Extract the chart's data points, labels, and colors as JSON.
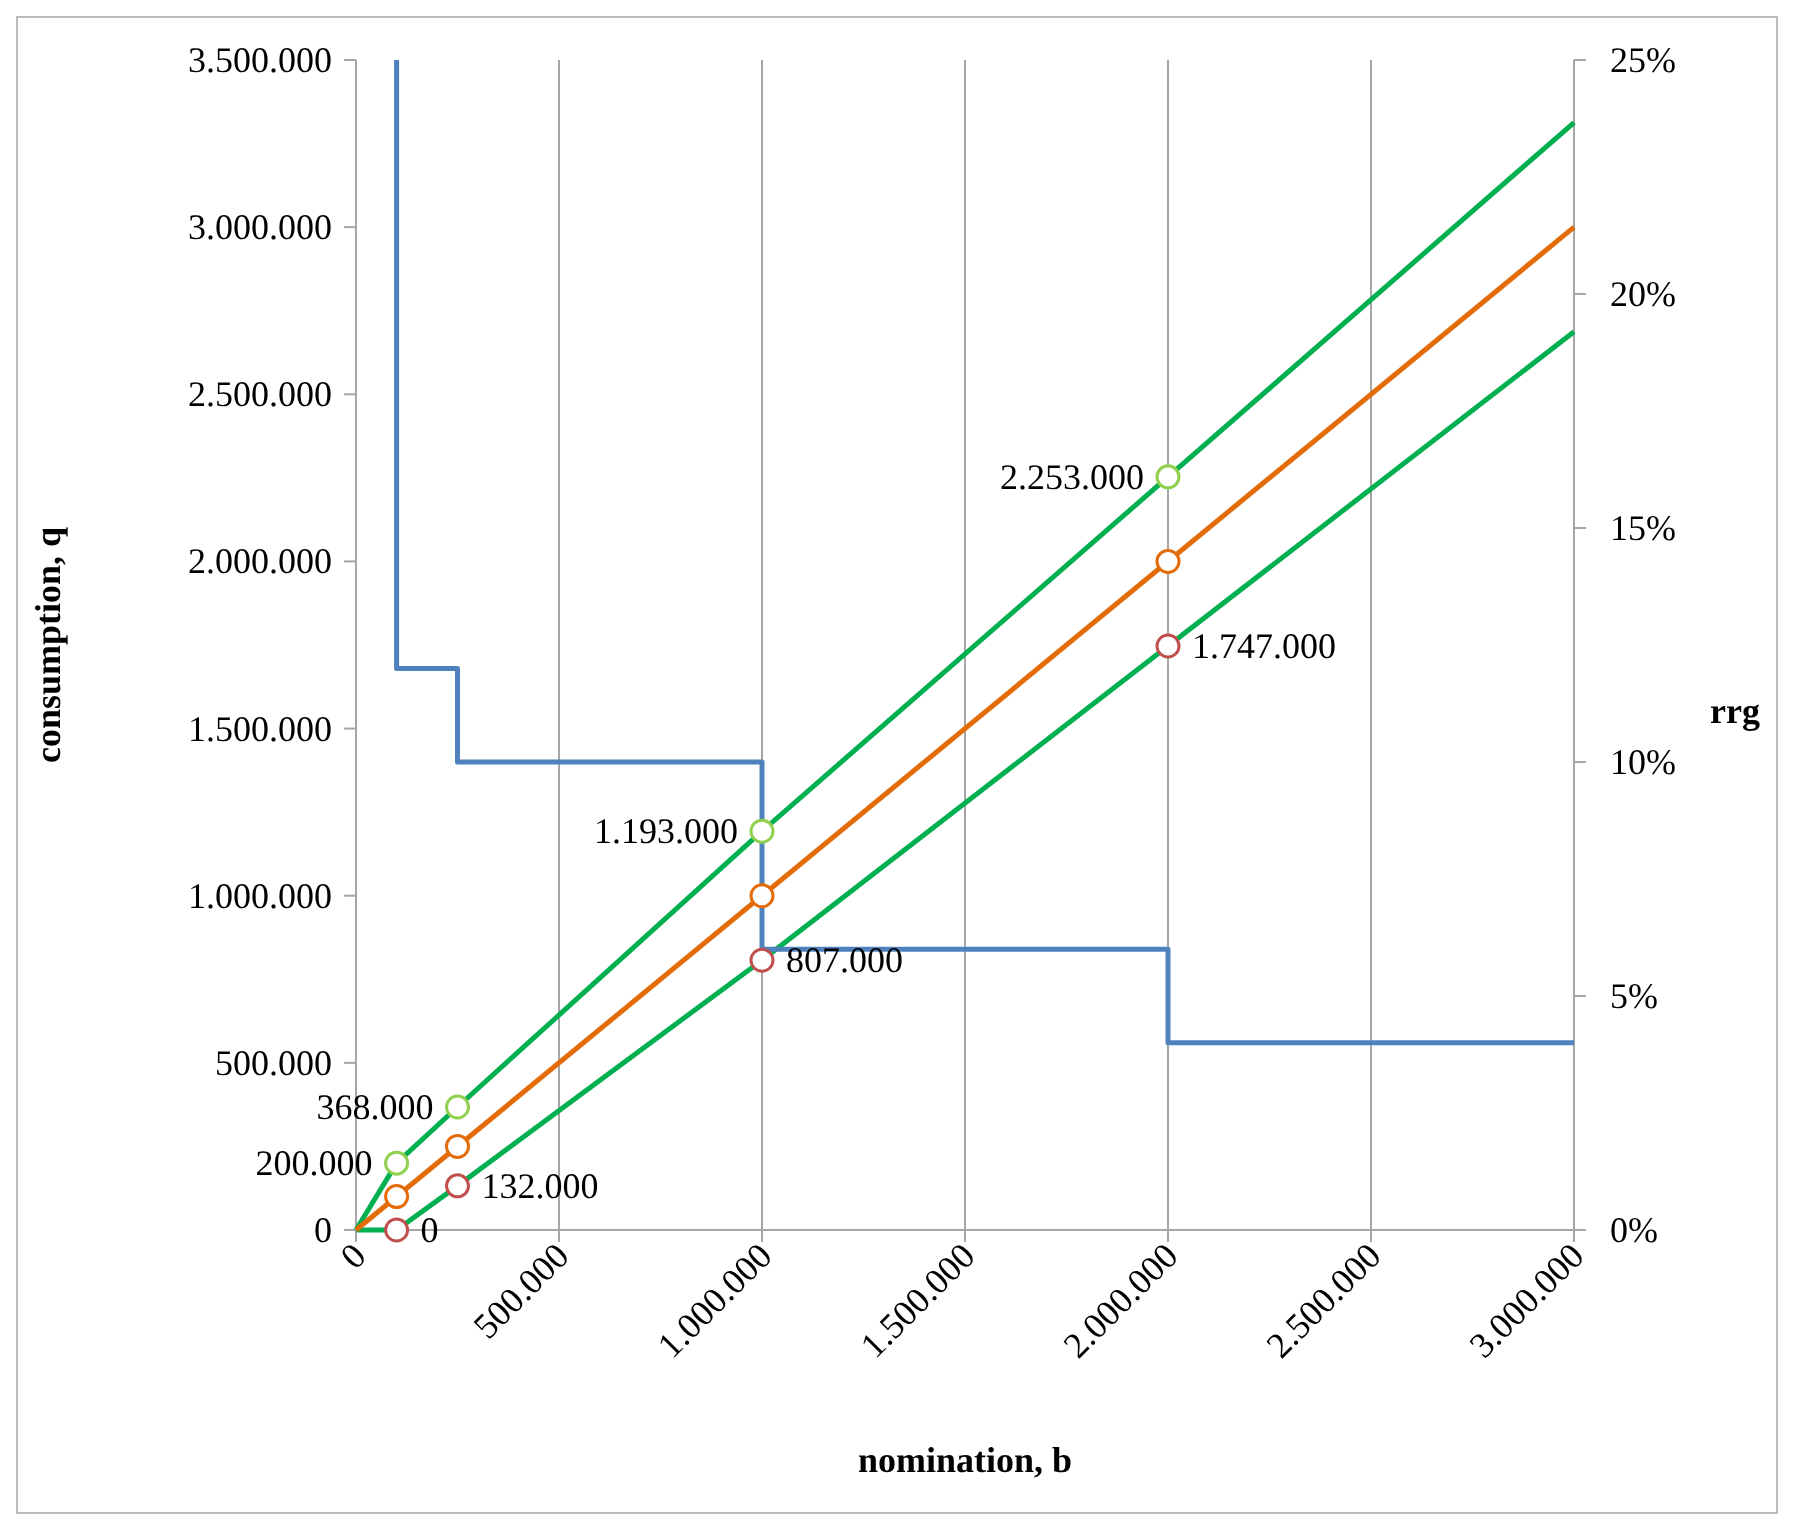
{
  "chart_data": {
    "type": "line",
    "xlabel": "nomination, b",
    "ylabel": "consumption, q",
    "y2label": "rrg",
    "xlim": [
      0,
      3000000
    ],
    "xticks": [
      0,
      {
        "value": 500000,
        "label": "500.000"
      },
      {
        "value": 1000000,
        "label": "1.000.000"
      },
      {
        "value": 1500000,
        "label": "1.500.000"
      },
      {
        "value": 2000000,
        "label": "2.000.000"
      },
      {
        "value": 2500000,
        "label": "2.500.000"
      },
      {
        "value": 3000000,
        "label": "3.000.000"
      }
    ],
    "ylim": [
      0,
      3500000
    ],
    "yticks": [
      0,
      {
        "value": 500000,
        "label": "500.000"
      },
      {
        "value": 1000000,
        "label": "1.000.000"
      },
      {
        "value": 1500000,
        "label": "1.500.000"
      },
      {
        "value": 2000000,
        "label": "2.000.000"
      },
      {
        "value": 2500000,
        "label": "2.500.000"
      },
      {
        "value": 3000000,
        "label": "3.000.000"
      },
      {
        "value": 3500000,
        "label": "3.500.000"
      }
    ],
    "y2lim": [
      0,
      25
    ],
    "y2ticks": [
      {
        "value": 0,
        "label": "0%"
      },
      {
        "value": 5,
        "label": "5%"
      },
      {
        "value": 10,
        "label": "10%"
      },
      {
        "value": 15,
        "label": "15%"
      },
      {
        "value": 20,
        "label": "20%"
      },
      {
        "value": 25,
        "label": "25%"
      }
    ],
    "grid": "x",
    "series": [
      {
        "color": "#00b050",
        "x": [
          0,
          100000,
          250000,
          1000000,
          2000000,
          3000000
        ],
        "values": [
          0,
          200000,
          368000,
          1193000,
          2253000,
          3313000
        ]
      },
      {
        "color": "#00b050",
        "x": [
          0,
          100000,
          250000,
          1000000,
          2000000,
          3000000
        ],
        "values": [
          0,
          0,
          132000,
          807000,
          1747000,
          2687000
        ]
      },
      {
        "color": "#e36c09",
        "x": [
          0,
          3000000
        ],
        "values": [
          0,
          3000000
        ]
      },
      {
        "type": "step",
        "axis": "y2",
        "color": "#4f81bd",
        "x": [
          100000,
          100000,
          250000,
          1000000,
          2000000,
          3000000
        ],
        "values": [
          25,
          12,
          10,
          6,
          4,
          4
        ]
      },
      {
        "type": "scatter",
        "marker": "circle",
        "color": "#92d050",
        "x": [
          100000,
          250000,
          1000000,
          2000000
        ],
        "values": [
          200000,
          368000,
          1193000,
          2253000
        ],
        "value_labels": [
          "200.000",
          "368.000",
          "1.193.000",
          "2.253.000"
        ]
      },
      {
        "type": "scatter",
        "marker": "circle",
        "color": "#c0504d",
        "x": [
          100000,
          250000,
          1000000,
          2000000
        ],
        "values": [
          0,
          132000,
          807000,
          1747000
        ],
        "value_labels": [
          "0",
          "132.000",
          "807.000",
          "1.747.000"
        ]
      },
      {
        "type": "scatter",
        "marker": "circle",
        "color": "#e36c09",
        "x": [
          100000,
          250000,
          1000000,
          2000000
        ],
        "values": [
          100000,
          250000,
          1000000,
          2000000
        ]
      }
    ]
  }
}
